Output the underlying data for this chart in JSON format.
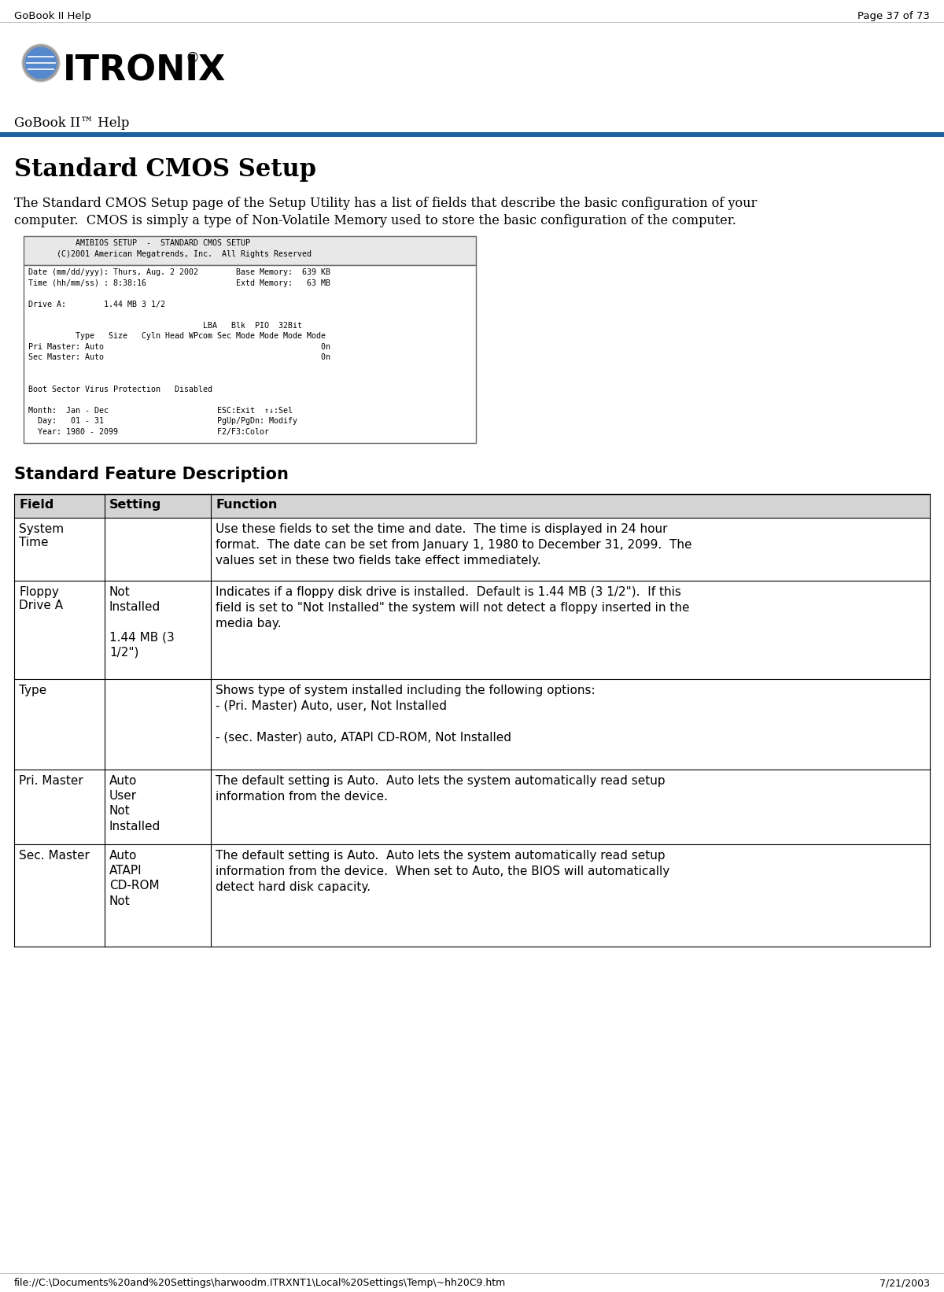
{
  "page_bg": "#ffffff",
  "header_left": "GoBook II Help",
  "header_right": "Page 37 of 73",
  "logo_text": "● ITRONIX®",
  "gobook_subtitle": "GoBook II™ Help",
  "blue_bar_color": "#1e5fa0",
  "section_title": "Standard CMOS Setup",
  "intro_line1": "The Standard CMOS Setup page of the Setup Utility has a list of fields that describe the basic configuration of your",
  "intro_line2": "computer.  CMOS is simply a type of Non-Volatile Memory used to store the basic configuration of the computer.",
  "bios_screen_lines": [
    "          AMIBIOS SETUP  -  STANDARD CMOS SETUP",
    "      (C)2001 American Megatrends, Inc.  All Rights Reserved",
    "",
    "Date (mm/dd/yyy): Thurs, Aug. 2 2002        Base Memory:  639 KB",
    "Time (hh/mm/ss) : 8:38:16                   Extd Memory:   63 MB",
    "",
    "Drive A:        1.44 MB 3 1/2",
    "",
    "                                     LBA   Blk  PIO  32Bit",
    "          Type   Size   Cyln Head WPcom Sec Mode Mode Mode Mode",
    "Pri Master: Auto                                              0n",
    "Sec Master: Auto                                              0n",
    "",
    "",
    "Boot Sector Virus Protection   Disabled",
    "",
    "Month:  Jan - Dec                       ESC:Exit  ↑↓:Sel",
    "  Day:   01 - 31                        PgUp/PgDn: Modify",
    "  Year: 1980 - 2099                     F2/F3:Color"
  ],
  "feature_title": "Standard Feature Description",
  "table_header": [
    "Field",
    "Setting",
    "Function"
  ],
  "table_rows": [
    {
      "field": "System\nTime",
      "setting": "",
      "function": "Use these fields to set the time and date.  The time is displayed in 24 hour\nformat.  The date can be set from January 1, 1980 to December 31, 2099.  The\nvalues set in these two fields take effect immediately."
    },
    {
      "field": "Floppy\nDrive A",
      "setting": "Not\nInstalled\n\n1.44 MB (3\n1/2\")",
      "function": "Indicates if a floppy disk drive is installed.  Default is 1.44 MB (3 1/2\").  If this\nfield is set to \"Not Installed\" the system will not detect a floppy inserted in the\nmedia bay."
    },
    {
      "field": "Type",
      "setting": "",
      "function": "Shows type of system installed including the following options:\n- (Pri. Master) Auto, user, Not Installed\n\n- (sec. Master) auto, ATAPI CD-ROM, Not Installed"
    },
    {
      "field": "Pri. Master",
      "setting": "Auto\nUser\nNot\nInstalled",
      "function": "The default setting is Auto.  Auto lets the system automatically read setup\ninformation from the device."
    },
    {
      "field": "Sec. Master",
      "setting": "Auto\nATAPI\nCD-ROM\nNot",
      "function": "The default setting is Auto.  Auto lets the system automatically read setup\ninformation from the device.  When set to Auto, the BIOS will automatically\ndetect hard disk capacity."
    }
  ],
  "footer_text": "file://C:\\Documents%20and%20Settings\\harwoodm.ITRXNT1\\Local%20Settings\\Temp\\~hh20C9.htm",
  "footer_date": "7/21/2003",
  "bios_header_lines": [
    "          AMIBIOS SETUP  -  STANDARD CMOS SETUP",
    "      (C)2001 American Megatrends, Inc.  All Rights Reserved"
  ],
  "bios_body_lines": [
    "Date (mm/dd/yyy): Thurs, Aug. 2 2002        Base Memory:  639 KB",
    "Time (hh/mm/ss) : 8:38:16                   Extd Memory:   63 MB",
    "",
    "Drive A:        1.44 MB 3 1/2",
    "",
    "                                     LBA   Blk  PIO  32Bit",
    "          Type   Size   Cyln Head WPcom Sec Mode Mode Mode Mode",
    "Pri Master: Auto                                              0n",
    "Sec Master: Auto                                              0n",
    "",
    "",
    "Boot Sector Virus Protection   Disabled",
    "",
    "Month:  Jan - Dec                       ESC:Exit  ↑↓:Sel",
    "  Day:   01 - 31                        PgUp/PgDn: Modify",
    "  Year: 1980 - 2099                     F2/F3:Color"
  ]
}
